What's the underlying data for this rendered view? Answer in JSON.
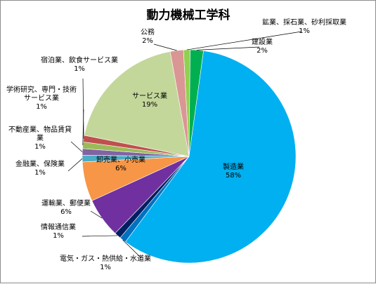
{
  "chart_data": {
    "type": "pie",
    "title": "動力機械工学科",
    "slices": [
      {
        "name": "鉱業、採石業、砂利採取業",
        "value": 1,
        "label": "1%",
        "color": "#92d050"
      },
      {
        "name": "建設業",
        "value": 2,
        "label": "2%",
        "color": "#00b050"
      },
      {
        "name": "製造業",
        "value": 58,
        "label": "58%",
        "color": "#00b0f0"
      },
      {
        "name": "電気・ガス・熱供給・水道業",
        "value": 1,
        "label": "1%",
        "color": "#0070c0"
      },
      {
        "name": "情報通信業",
        "value": 1,
        "label": "1%",
        "color": "#002060"
      },
      {
        "name": "運輸業、郵便業",
        "value": 6,
        "label": "6%",
        "color": "#7030a0"
      },
      {
        "name": "卸売業、小売業",
        "value": 6,
        "label": "6%",
        "color": "#f79646"
      },
      {
        "name": "金融業、保険業",
        "value": 1,
        "label": "1%",
        "color": "#4bacc6"
      },
      {
        "name": "不動産業、物品賃貸業",
        "value": 1,
        "label": "1%",
        "color": "#8064a2"
      },
      {
        "name": "学術研究、専門・技術サービス業",
        "value": 1,
        "label": "1%",
        "color": "#9bbb59"
      },
      {
        "name": "宿泊業、飲食サービス業",
        "value": 1,
        "label": "1%",
        "color": "#c0504d"
      },
      {
        "name": "サービス業",
        "value": 19,
        "label": "19%",
        "color": "#c4d79b"
      },
      {
        "name": "公務",
        "value": 2,
        "label": "2%",
        "color": "#da9694"
      }
    ]
  }
}
